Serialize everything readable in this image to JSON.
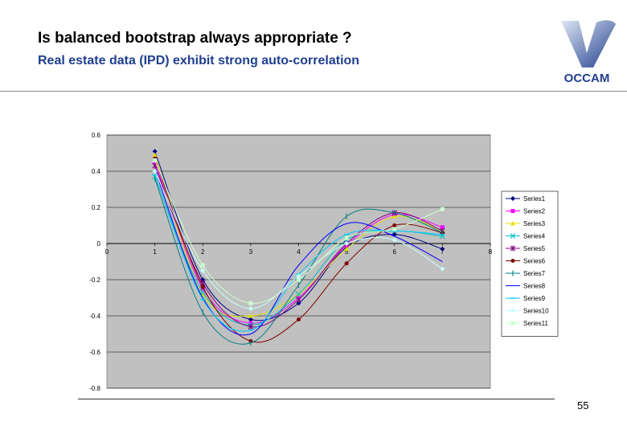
{
  "slide": {
    "title": "Is balanced bootstrap always appropriate ?",
    "subtitle": "Real estate data (IPD) exhibit strong auto-correlation",
    "logo_text": "OCCAM",
    "page_number": "55"
  },
  "colors": {
    "subtitle": "#1f3f8f",
    "plot_bg": "#c0c0c0",
    "logo_blue": "#1f3f8f"
  },
  "chart_data": {
    "type": "line",
    "title": "",
    "xlabel": "",
    "ylabel": "",
    "xlim": [
      0,
      8
    ],
    "ylim": [
      -0.8,
      0.6
    ],
    "xticks": [
      "0",
      "1",
      "2",
      "3",
      "4",
      "5",
      "6",
      "7",
      "8"
    ],
    "yticks": [
      "0.6",
      "0.4",
      "0.2",
      "0",
      "-0.2",
      "-0.4",
      "-0.6",
      "-0.8"
    ],
    "x": [
      1,
      2,
      3,
      4,
      5,
      6,
      7
    ],
    "grid": "horizontal",
    "legend_position": "right",
    "series": [
      {
        "name": "Series1",
        "color": "#000080",
        "marker": "diamond",
        "values": [
          0.51,
          -0.2,
          -0.42,
          -0.33,
          -0.02,
          0.05,
          -0.03
        ]
      },
      {
        "name": "Series2",
        "color": "#ff00ff",
        "marker": "square",
        "values": [
          0.45,
          -0.25,
          -0.44,
          -0.3,
          -0.01,
          0.16,
          0.09
        ]
      },
      {
        "name": "Series3",
        "color": "#e0e000",
        "marker": "triangle",
        "values": [
          0.49,
          -0.28,
          -0.4,
          -0.28,
          -0.03,
          0.15,
          0.07
        ]
      },
      {
        "name": "Series4",
        "color": "#00c0c0",
        "marker": "x",
        "values": [
          0.37,
          -0.27,
          -0.45,
          -0.28,
          0.02,
          0.07,
          0.04
        ]
      },
      {
        "name": "Series5",
        "color": "#800080",
        "marker": "star",
        "values": [
          0.43,
          -0.22,
          -0.46,
          -0.31,
          0.0,
          0.17,
          0.07
        ]
      },
      {
        "name": "Series6",
        "color": "#800000",
        "marker": "circle",
        "values": [
          0.47,
          -0.24,
          -0.54,
          -0.42,
          -0.11,
          0.1,
          0.06
        ]
      },
      {
        "name": "Series7",
        "color": "#008080",
        "marker": "plus",
        "values": [
          0.36,
          -0.38,
          -0.55,
          -0.23,
          0.15,
          0.17,
          0.06
        ]
      },
      {
        "name": "Series8",
        "color": "#0000ff",
        "marker": "none",
        "values": [
          0.41,
          -0.3,
          -0.5,
          -0.12,
          0.11,
          0.04,
          -0.1
        ]
      },
      {
        "name": "Series9",
        "color": "#00ccff",
        "marker": "dash",
        "values": [
          0.38,
          -0.31,
          -0.48,
          -0.17,
          0.05,
          0.07,
          0.05
        ]
      },
      {
        "name": "Series10",
        "color": "#c8ffff",
        "marker": "diamond",
        "values": [
          0.4,
          -0.15,
          -0.36,
          -0.18,
          0.0,
          0.02,
          -0.14
        ]
      },
      {
        "name": "Series11",
        "color": "#ccffcc",
        "marker": "square",
        "values": [
          0.46,
          -0.12,
          -0.33,
          -0.2,
          0.03,
          0.08,
          0.19
        ]
      }
    ]
  }
}
